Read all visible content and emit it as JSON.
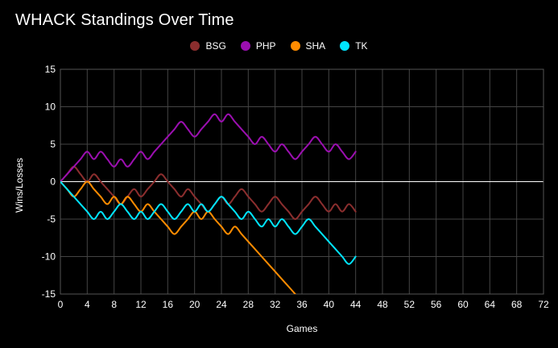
{
  "chart_data": {
    "type": "line",
    "title": "WHACK Standings Over Time",
    "xlabel": "Games",
    "ylabel": "Wins/Losses",
    "xlim": [
      0,
      72
    ],
    "ylim": [
      -15,
      15
    ],
    "xticks": [
      0,
      4,
      8,
      12,
      16,
      20,
      24,
      28,
      32,
      36,
      40,
      44,
      48,
      52,
      56,
      60,
      64,
      68,
      72
    ],
    "yticks": [
      15,
      10,
      5,
      0,
      -5,
      -10,
      -15
    ],
    "grid": true,
    "legend_position": "top-center",
    "series": [
      {
        "name": "BSG",
        "color": "#8b2e2e",
        "x": [
          0,
          1,
          2,
          3,
          4,
          5,
          6,
          7,
          8,
          9,
          10,
          11,
          12,
          13,
          14,
          15,
          16,
          17,
          18,
          19,
          20,
          21,
          22,
          23,
          24,
          25,
          26,
          27,
          28,
          29,
          30,
          31,
          32,
          33,
          34,
          35,
          36,
          37,
          38,
          39,
          40,
          41,
          42,
          43,
          44
        ],
        "values": [
          0,
          1,
          2,
          1,
          0,
          1,
          0,
          -1,
          -2,
          -3,
          -2,
          -1,
          -2,
          -1,
          0,
          1,
          0,
          -1,
          -2,
          -1,
          -2,
          -3,
          -4,
          -3,
          -2,
          -3,
          -2,
          -1,
          -2,
          -3,
          -4,
          -3,
          -2,
          -3,
          -4,
          -5,
          -4,
          -3,
          -2,
          -3,
          -4,
          -3,
          -4,
          -3,
          -4
        ]
      },
      {
        "name": "PHP",
        "color": "#9b0fb0",
        "x": [
          0,
          1,
          2,
          3,
          4,
          5,
          6,
          7,
          8,
          9,
          10,
          11,
          12,
          13,
          14,
          15,
          16,
          17,
          18,
          19,
          20,
          21,
          22,
          23,
          24,
          25,
          26,
          27,
          28,
          29,
          30,
          31,
          32,
          33,
          34,
          35,
          36,
          37,
          38,
          39,
          40,
          41,
          42,
          43,
          44
        ],
        "values": [
          0,
          1,
          2,
          3,
          4,
          3,
          4,
          3,
          2,
          3,
          2,
          3,
          4,
          3,
          4,
          5,
          6,
          7,
          8,
          7,
          6,
          7,
          8,
          9,
          8,
          9,
          8,
          7,
          6,
          5,
          6,
          5,
          4,
          5,
          4,
          3,
          4,
          5,
          6,
          5,
          4,
          5,
          4,
          3,
          4
        ]
      },
      {
        "name": "SHA",
        "color": "#ff8c00",
        "x": [
          0,
          1,
          2,
          3,
          4,
          5,
          6,
          7,
          8,
          9,
          10,
          11,
          12,
          13,
          14,
          15,
          16,
          17,
          18,
          19,
          20,
          21,
          22,
          23,
          24,
          25,
          26,
          27,
          28,
          29,
          30,
          31,
          32,
          33,
          34,
          35
        ],
        "values": [
          0,
          -1,
          -2,
          -1,
          0,
          -1,
          -2,
          -3,
          -2,
          -3,
          -2,
          -3,
          -4,
          -3,
          -4,
          -5,
          -6,
          -7,
          -6,
          -5,
          -4,
          -5,
          -4,
          -5,
          -6,
          -7,
          -6,
          -7,
          -8,
          -9,
          -10,
          -11,
          -12,
          -13,
          -14,
          -15
        ]
      },
      {
        "name": "TK",
        "color": "#00e5ff",
        "x": [
          0,
          1,
          2,
          3,
          4,
          5,
          6,
          7,
          8,
          9,
          10,
          11,
          12,
          13,
          14,
          15,
          16,
          17,
          18,
          19,
          20,
          21,
          22,
          23,
          24,
          25,
          26,
          27,
          28,
          29,
          30,
          31,
          32,
          33,
          34,
          35,
          36,
          37,
          38,
          39,
          40,
          41,
          42,
          43,
          44
        ],
        "values": [
          0,
          -1,
          -2,
          -3,
          -4,
          -5,
          -4,
          -5,
          -4,
          -3,
          -4,
          -5,
          -4,
          -5,
          -4,
          -3,
          -4,
          -5,
          -4,
          -3,
          -4,
          -3,
          -4,
          -3,
          -2,
          -3,
          -4,
          -5,
          -4,
          -5,
          -6,
          -5,
          -6,
          -5,
          -6,
          -7,
          -6,
          -5,
          -6,
          -7,
          -8,
          -9,
          -10,
          -11,
          -10
        ]
      }
    ]
  }
}
